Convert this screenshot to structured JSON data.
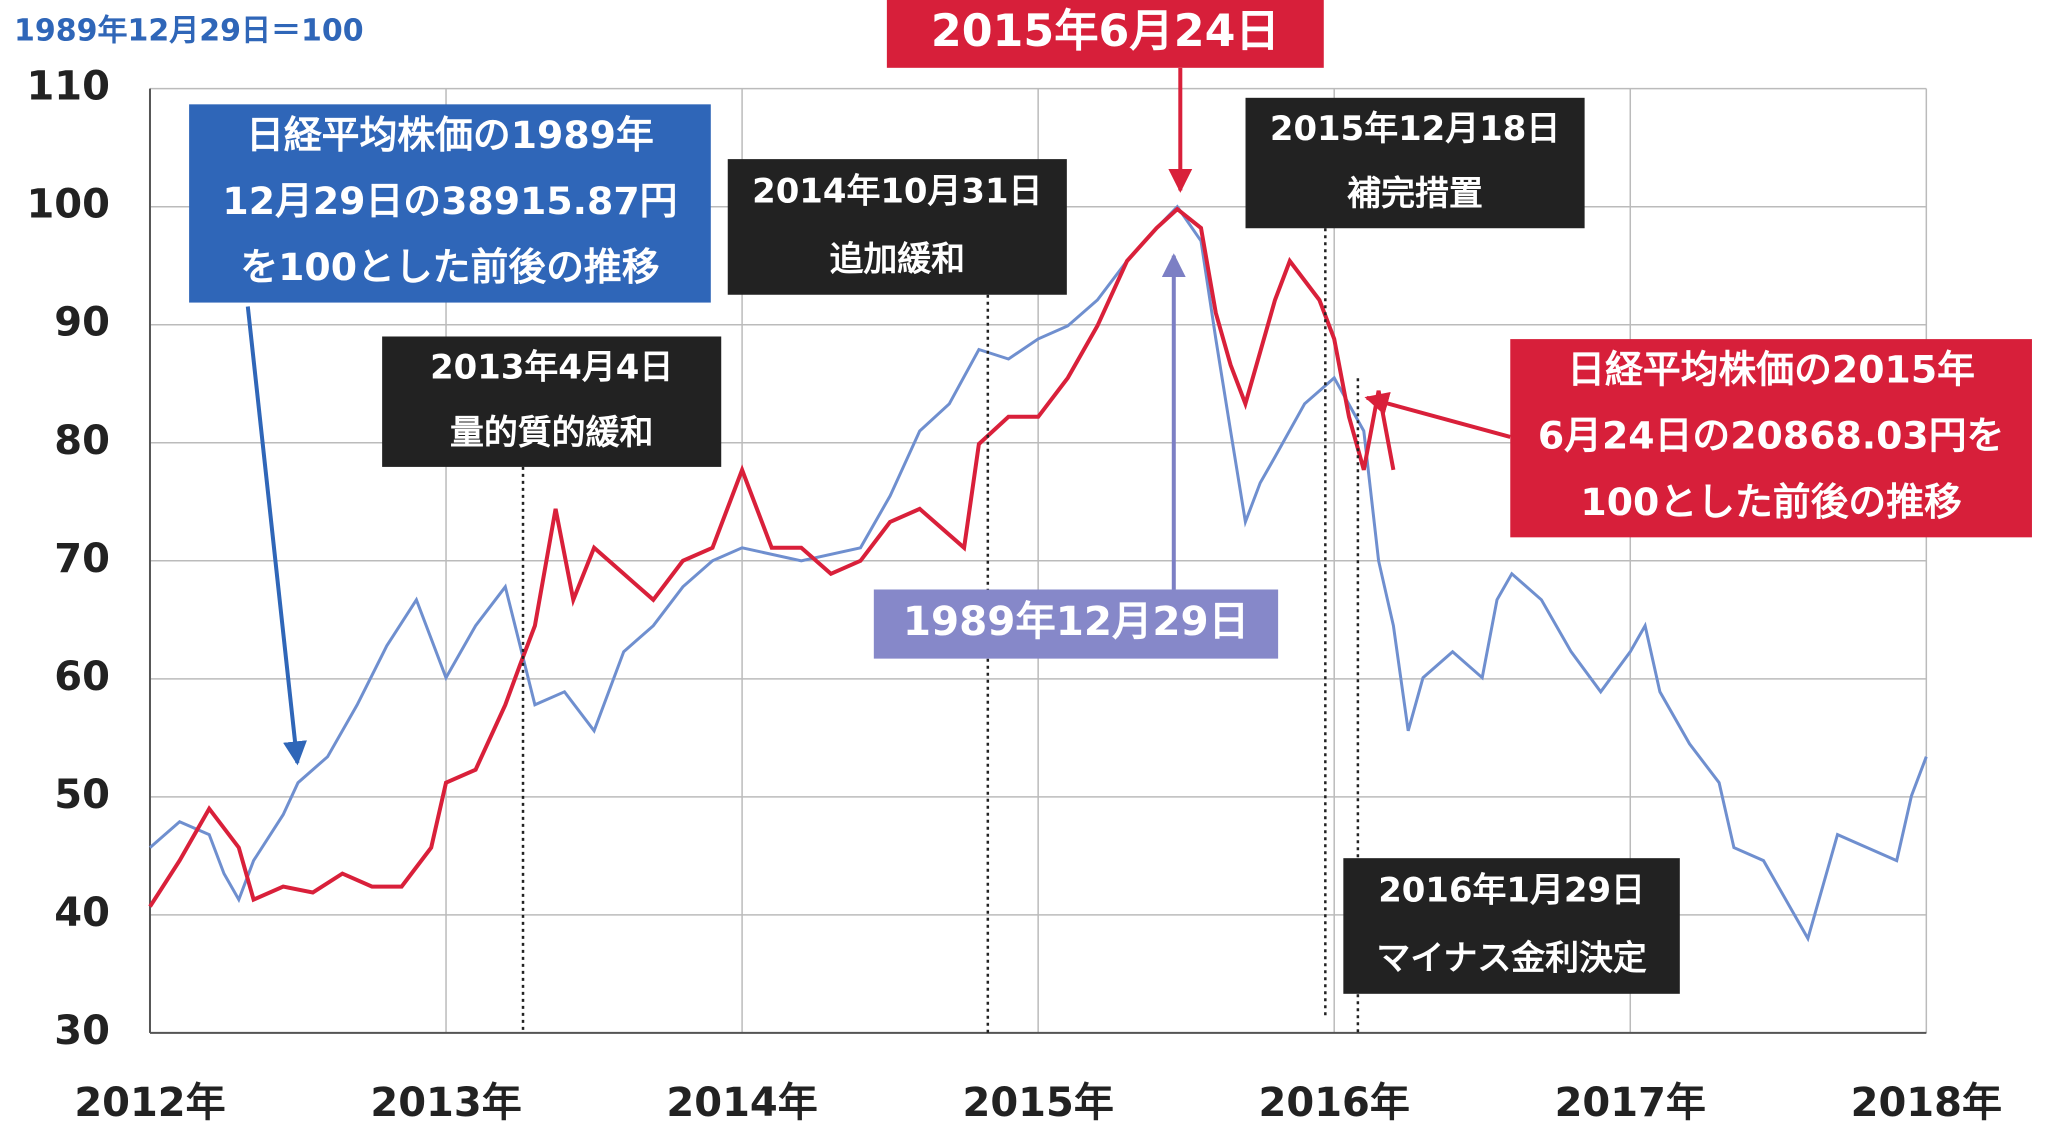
{
  "chart_data": {
    "type": "line",
    "y_label": "1989年12月29日＝100",
    "xlim": [
      2012,
      2018
    ],
    "xticks": [
      {
        "value": 2012,
        "label": "2012年"
      },
      {
        "value": 2013,
        "label": "2013年"
      },
      {
        "value": 2014,
        "label": "2014年"
      },
      {
        "value": 2015,
        "label": "2015年"
      },
      {
        "value": 2016,
        "label": "2016年"
      },
      {
        "value": 2017,
        "label": "2017年"
      },
      {
        "value": 2018,
        "label": "2018年"
      }
    ],
    "ylim": [
      30,
      110
    ],
    "yticks": [
      30,
      40,
      50,
      60,
      70,
      80,
      90,
      100,
      110
    ],
    "grid": true,
    "series": [
      {
        "color": "#6f8fcf",
        "x": [
          2012.0,
          2012.1,
          2012.2,
          2012.25,
          2012.3,
          2012.35,
          2012.45,
          2012.5,
          2012.6,
          2012.7,
          2012.8,
          2012.9,
          2013.0,
          2013.1,
          2013.2,
          2013.3,
          2013.4,
          2013.5,
          2013.6,
          2013.7,
          2013.8,
          2013.9,
          2014.0,
          2014.2,
          2014.4,
          2014.5,
          2014.6,
          2014.7,
          2014.8,
          2014.9,
          2015.0,
          2015.1,
          2015.2,
          2015.3,
          2015.4,
          2015.47,
          2015.55,
          2015.6,
          2015.65,
          2015.7,
          2015.75,
          2015.8,
          2015.9,
          2016.0,
          2016.1,
          2016.15,
          2016.2,
          2016.25,
          2016.3,
          2016.4,
          2016.5,
          2016.55,
          2016.6,
          2016.7,
          2016.8,
          2016.9,
          2017.0,
          2017.05,
          2017.1,
          2017.2,
          2017.3,
          2017.35,
          2017.45,
          2017.55,
          2017.6,
          2017.65,
          2017.7,
          2017.8,
          2017.9,
          2017.95,
          2018.0
        ],
        "values": [
          45.7,
          47.9,
          46.8,
          43.5,
          41.3,
          44.6,
          48.5,
          51.2,
          53.4,
          57.8,
          62.8,
          66.7,
          60.1,
          64.5,
          67.8,
          57.8,
          58.9,
          55.6,
          62.3,
          64.5,
          67.8,
          70.0,
          71.1,
          70.0,
          71.1,
          75.5,
          81.0,
          83.3,
          87.9,
          87.1,
          88.8,
          89.9,
          92.1,
          95.4,
          98.2,
          100,
          97.1,
          88.8,
          81.0,
          73.3,
          76.6,
          78.8,
          83.3,
          85.5,
          81.0,
          70.0,
          64.5,
          55.6,
          60.1,
          62.3,
          60.1,
          66.7,
          68.9,
          66.7,
          62.3,
          58.9,
          62.3,
          64.5,
          58.9,
          54.5,
          51.2,
          45.7,
          44.6,
          40.2,
          38.0,
          42.4,
          46.8,
          45.7,
          44.6,
          50.1,
          53.4
        ]
      },
      {
        "color": "#d9203a",
        "x": [
          2012.0,
          2012.1,
          2012.2,
          2012.3,
          2012.35,
          2012.45,
          2012.55,
          2012.65,
          2012.75,
          2012.85,
          2012.95,
          2013.0,
          2013.1,
          2013.2,
          2013.25,
          2013.3,
          2013.37,
          2013.43,
          2013.5,
          2013.6,
          2013.7,
          2013.8,
          2013.9,
          2014.0,
          2014.1,
          2014.2,
          2014.3,
          2014.4,
          2014.5,
          2014.6,
          2014.75,
          2014.8,
          2014.9,
          2015.0,
          2015.1,
          2015.2,
          2015.3,
          2015.4,
          2015.47,
          2015.55,
          2015.6,
          2015.65,
          2015.7,
          2015.75,
          2015.8,
          2015.85,
          2015.95,
          2016.0,
          2016.05,
          2016.1,
          2016.15,
          2016.2
        ],
        "values": [
          40.7,
          44.6,
          49.0,
          45.7,
          41.3,
          42.4,
          41.9,
          43.5,
          42.4,
          42.4,
          45.7,
          51.2,
          52.3,
          57.8,
          61.2,
          64.5,
          74.4,
          66.7,
          71.1,
          68.9,
          66.7,
          70.0,
          71.1,
          77.7,
          71.1,
          71.1,
          68.9,
          70.0,
          73.3,
          74.4,
          71.1,
          79.9,
          82.2,
          82.2,
          85.5,
          89.9,
          95.4,
          98.2,
          99.8,
          98.2,
          91.0,
          86.6,
          83.3,
          87.7,
          92.1,
          95.4,
          92.1,
          88.8,
          82.2,
          77.7,
          84.4,
          77.7
        ]
      }
    ],
    "annotations": [
      {
        "lines": [
          "日経平均株価の1989年",
          "12月29日の38915.87円",
          "を100とした前後の推移"
        ]
      },
      {
        "lines": [
          "2013年4月4日",
          "量的質的緩和"
        ],
        "x": 2013.26
      },
      {
        "lines": [
          "2014年10月31日",
          "追加緩和"
        ],
        "x": 2014.83
      },
      {
        "lines": [
          "2015年6月24日"
        ],
        "x": 2015.47
      },
      {
        "lines": [
          "2015年12月18日",
          "補完措置"
        ],
        "x": 2015.97
      },
      {
        "lines": [
          "日経平均株価の2015年",
          "6月24日の20868.03円を",
          "100とした前後の推移"
        ]
      },
      {
        "lines": [
          "1989年12月29日"
        ],
        "x": 2015.47
      },
      {
        "lines": [
          "2016年1月29日",
          "マイナス金利決定"
        ],
        "x": 2016.08
      }
    ]
  }
}
